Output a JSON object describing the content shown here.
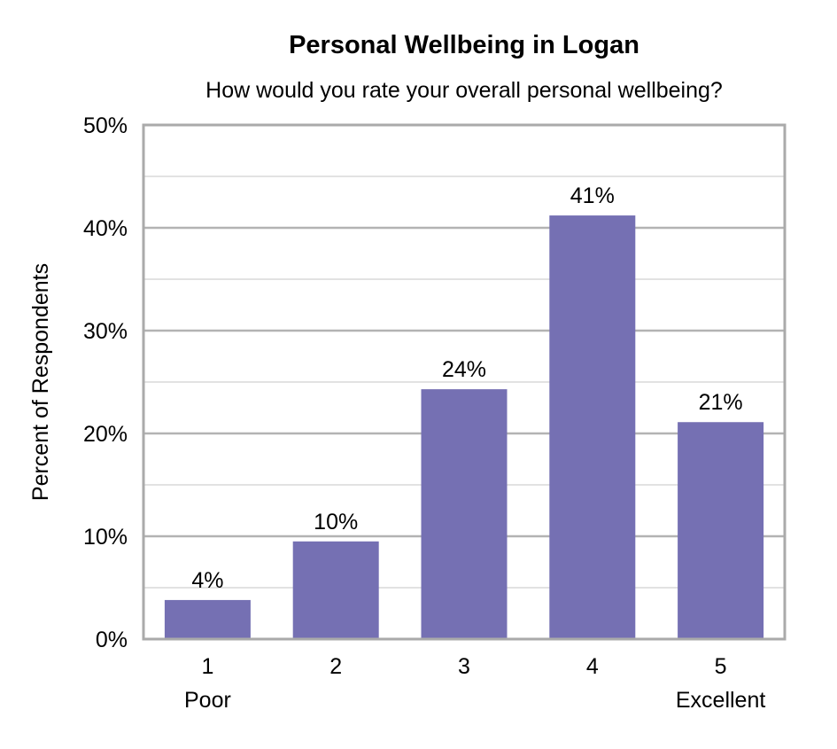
{
  "chart_data": {
    "type": "bar",
    "title": "Personal Wellbeing in Logan",
    "subtitle": "How would you rate your overall personal wellbeing?",
    "xlabel": "",
    "ylabel": "Percent of Respondents",
    "categories": [
      "1",
      "2",
      "3",
      "4",
      "5"
    ],
    "category_sublabels": [
      "Poor",
      "",
      "",
      "",
      "Excellent"
    ],
    "values": [
      3.8,
      9.5,
      24.3,
      41.2,
      21.1
    ],
    "data_labels": [
      "4%",
      "10%",
      "24%",
      "41%",
      "21%"
    ],
    "ylim": [
      0,
      50
    ],
    "yticks": [
      "0%",
      "10%",
      "20%",
      "30%",
      "40%",
      "50%"
    ],
    "grid": true,
    "legend": "none",
    "bar_color": "#7570b3"
  }
}
